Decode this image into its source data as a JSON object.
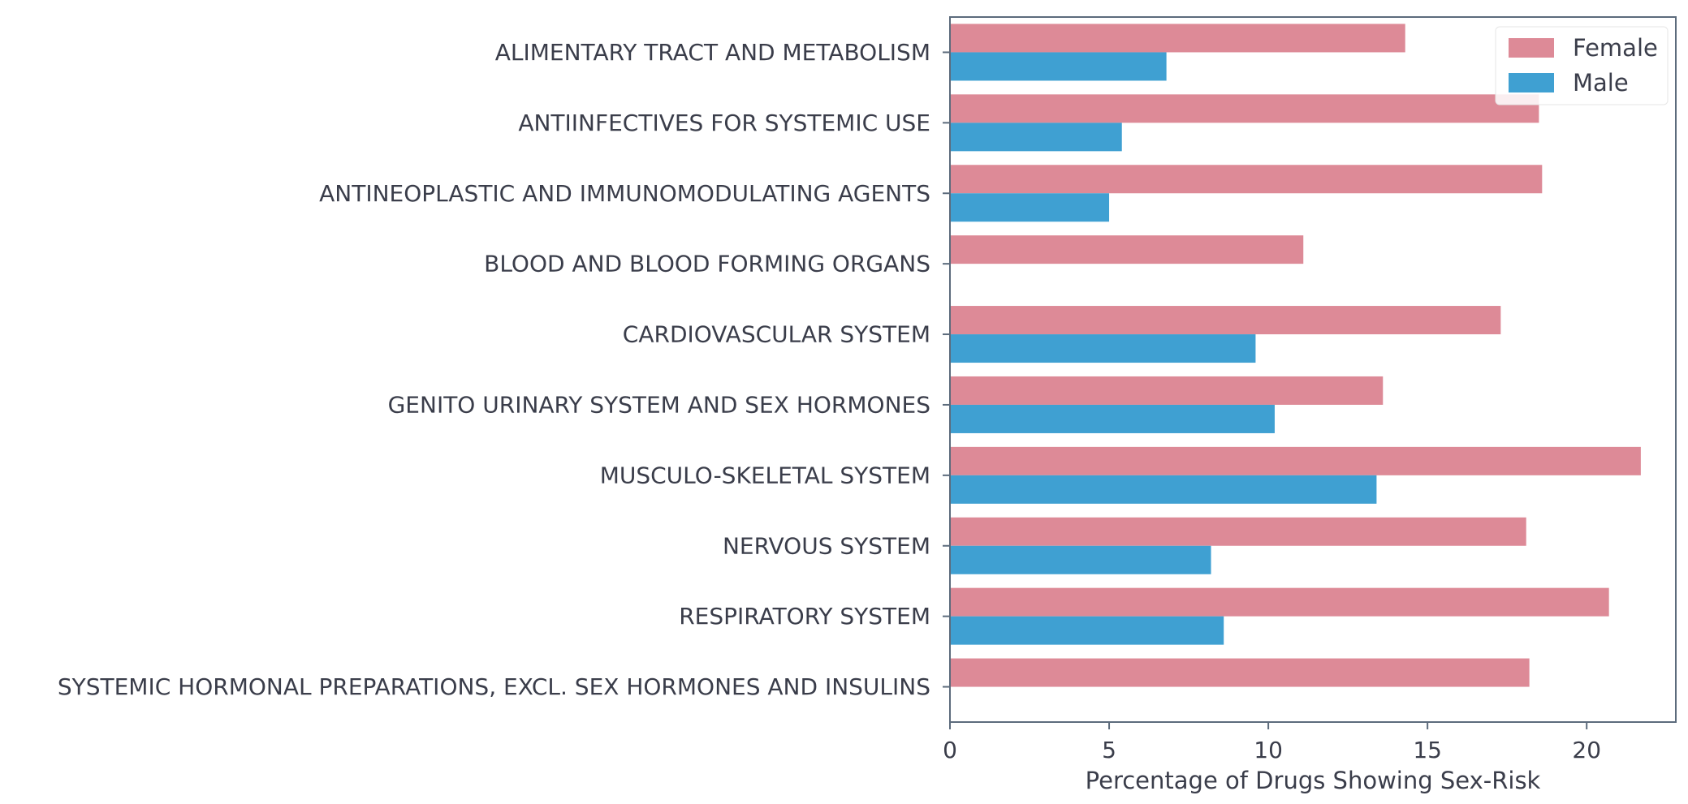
{
  "chart_data": {
    "type": "bar",
    "orientation": "horizontal",
    "categories": [
      "ALIMENTARY TRACT AND METABOLISM",
      "ANTIINFECTIVES FOR SYSTEMIC USE",
      "ANTINEOPLASTIC AND IMMUNOMODULATING AGENTS",
      "BLOOD AND BLOOD FORMING ORGANS",
      "CARDIOVASCULAR SYSTEM",
      "GENITO URINARY SYSTEM AND SEX HORMONES",
      "MUSCULO-SKELETAL SYSTEM",
      "NERVOUS SYSTEM",
      "RESPIRATORY SYSTEM",
      "SYSTEMIC HORMONAL PREPARATIONS, EXCL. SEX HORMONES AND INSULINS"
    ],
    "series": [
      {
        "name": "Female",
        "color": "#dd8a97",
        "values": [
          14.3,
          18.5,
          18.6,
          11.1,
          17.3,
          13.6,
          21.7,
          18.1,
          20.7,
          18.2
        ]
      },
      {
        "name": "Male",
        "color": "#3fa0d2",
        "values": [
          6.8,
          5.4,
          5.0,
          0,
          9.6,
          10.2,
          13.4,
          8.2,
          8.6,
          0
        ]
      }
    ],
    "xlabel": "Percentage of Drugs Showing Sex-Risk",
    "ylabel": "",
    "xlim": [
      0,
      22.8
    ],
    "xticks": [
      0,
      5,
      10,
      15,
      20
    ],
    "grid": false,
    "legend_position": "top-right"
  }
}
